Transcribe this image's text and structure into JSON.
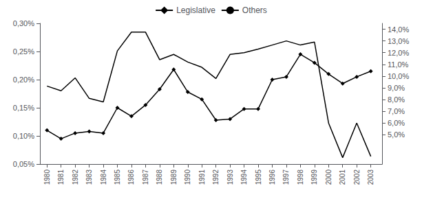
{
  "chart_data": {
    "type": "line",
    "x": [
      1980,
      1981,
      1982,
      1983,
      1984,
      1985,
      1986,
      1987,
      1988,
      1989,
      1990,
      1991,
      1992,
      1993,
      1994,
      1995,
      1996,
      1997,
      1998,
      1999,
      2000,
      2001,
      2002,
      2003
    ],
    "xlim": [
      1979.5,
      2003.8
    ],
    "xticks": [
      1980,
      1981,
      1982,
      1983,
      1984,
      1985,
      1986,
      1987,
      1988,
      1989,
      1990,
      1991,
      1992,
      1993,
      1994,
      1995,
      1996,
      1997,
      1998,
      1999,
      2000,
      2001,
      2002,
      2003
    ],
    "ylim": [
      0.0005,
      0.003
    ],
    "yticks": [
      {
        "value": 0.0005,
        "label": "0,05%"
      },
      {
        "value": 0.001,
        "label": "0,10%"
      },
      {
        "value": 0.0015,
        "label": "0,15%"
      },
      {
        "value": 0.002,
        "label": "0,20%"
      },
      {
        "value": 0.0025,
        "label": "0,25%"
      },
      {
        "value": 0.003,
        "label": "0,30%"
      }
    ],
    "y2lim": [
      0.025,
      0.145
    ],
    "y2ticks": [
      {
        "value": 0.05,
        "label": "5,0%"
      },
      {
        "value": 0.06,
        "label": "6,0%"
      },
      {
        "value": 0.07,
        "label": "7,0%"
      },
      {
        "value": 0.08,
        "label": "8,0%"
      },
      {
        "value": 0.09,
        "label": "9,0%"
      },
      {
        "value": 0.1,
        "label": "10,0%"
      },
      {
        "value": 0.11,
        "label": "11,0%"
      },
      {
        "value": 0.12,
        "label": "12,0%"
      },
      {
        "value": 0.13,
        "label": "13,0%"
      },
      {
        "value": 0.14,
        "label": "14,0%"
      }
    ],
    "series": [
      {
        "name": "Legislative",
        "color": "#000000",
        "marker": "diamond",
        "axis": "y",
        "values": [
          0.0011,
          0.00095,
          0.00105,
          0.00108,
          0.00105,
          0.0015,
          0.00135,
          0.00155,
          0.00183,
          0.00218,
          0.00178,
          0.00165,
          0.00128,
          0.0013,
          0.00148,
          0.00148,
          0.002,
          0.00205,
          0.00245,
          0.0023,
          0.0021,
          0.00193,
          0.00205,
          0.00215
        ]
      },
      {
        "name": "Others",
        "color": "#000000",
        "marker": "none",
        "axis": "y2",
        "values": [
          0.0915,
          0.0875,
          0.0985,
          0.081,
          0.078,
          0.1215,
          0.1375,
          0.1375,
          0.114,
          0.1185,
          0.112,
          0.1075,
          0.098,
          0.1185,
          0.12,
          0.123,
          0.1265,
          0.13,
          0.1265,
          0.129,
          0.06,
          0.0305,
          0.06,
          0.0315
        ]
      }
    ],
    "grid": false,
    "legend": "top"
  }
}
